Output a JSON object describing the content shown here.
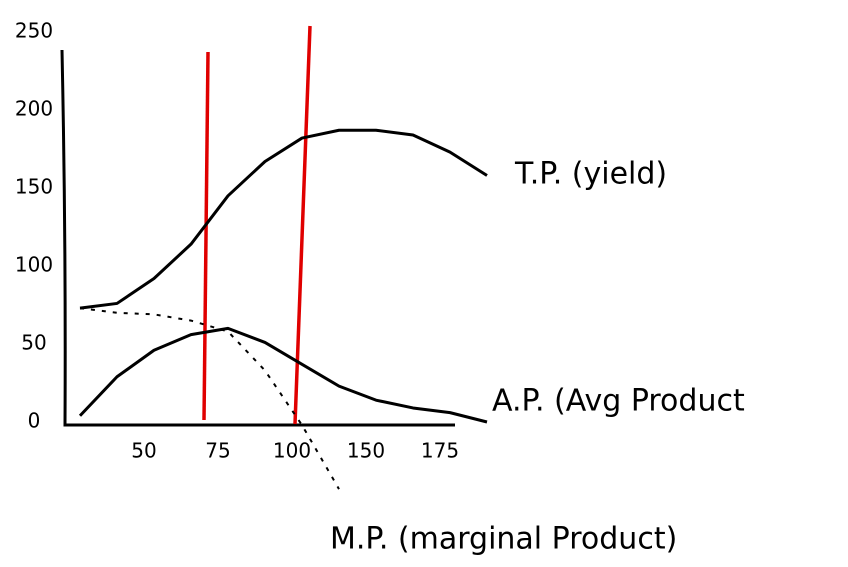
{
  "chart_data": {
    "type": "line",
    "categories": [
      null,
      null,
      "50",
      null,
      "75",
      null,
      "100",
      null,
      "150",
      null,
      "175",
      null
    ],
    "series": [
      {
        "name": "T.P. (yield)",
        "color": "#000000",
        "values": [
          73,
          76,
          92,
          114,
          145,
          167,
          182,
          187,
          187,
          184,
          173,
          158
        ]
      },
      {
        "name": "A.P. (Avg Product",
        "color": "#000000",
        "values": [
          4,
          29,
          46,
          56,
          60,
          51,
          37,
          23,
          14,
          9,
          6,
          0
        ]
      },
      {
        "name": "M.P. (marginal Product)",
        "color": "#000000",
        "dashed": true,
        "values": [
          73,
          70,
          69,
          65,
          58,
          33,
          -2,
          -43,
          null,
          null,
          null,
          null
        ]
      }
    ],
    "ylim": [
      0,
      250
    ],
    "yticks": [
      0,
      50,
      100,
      150,
      200,
      250
    ],
    "grid": false
  }
}
